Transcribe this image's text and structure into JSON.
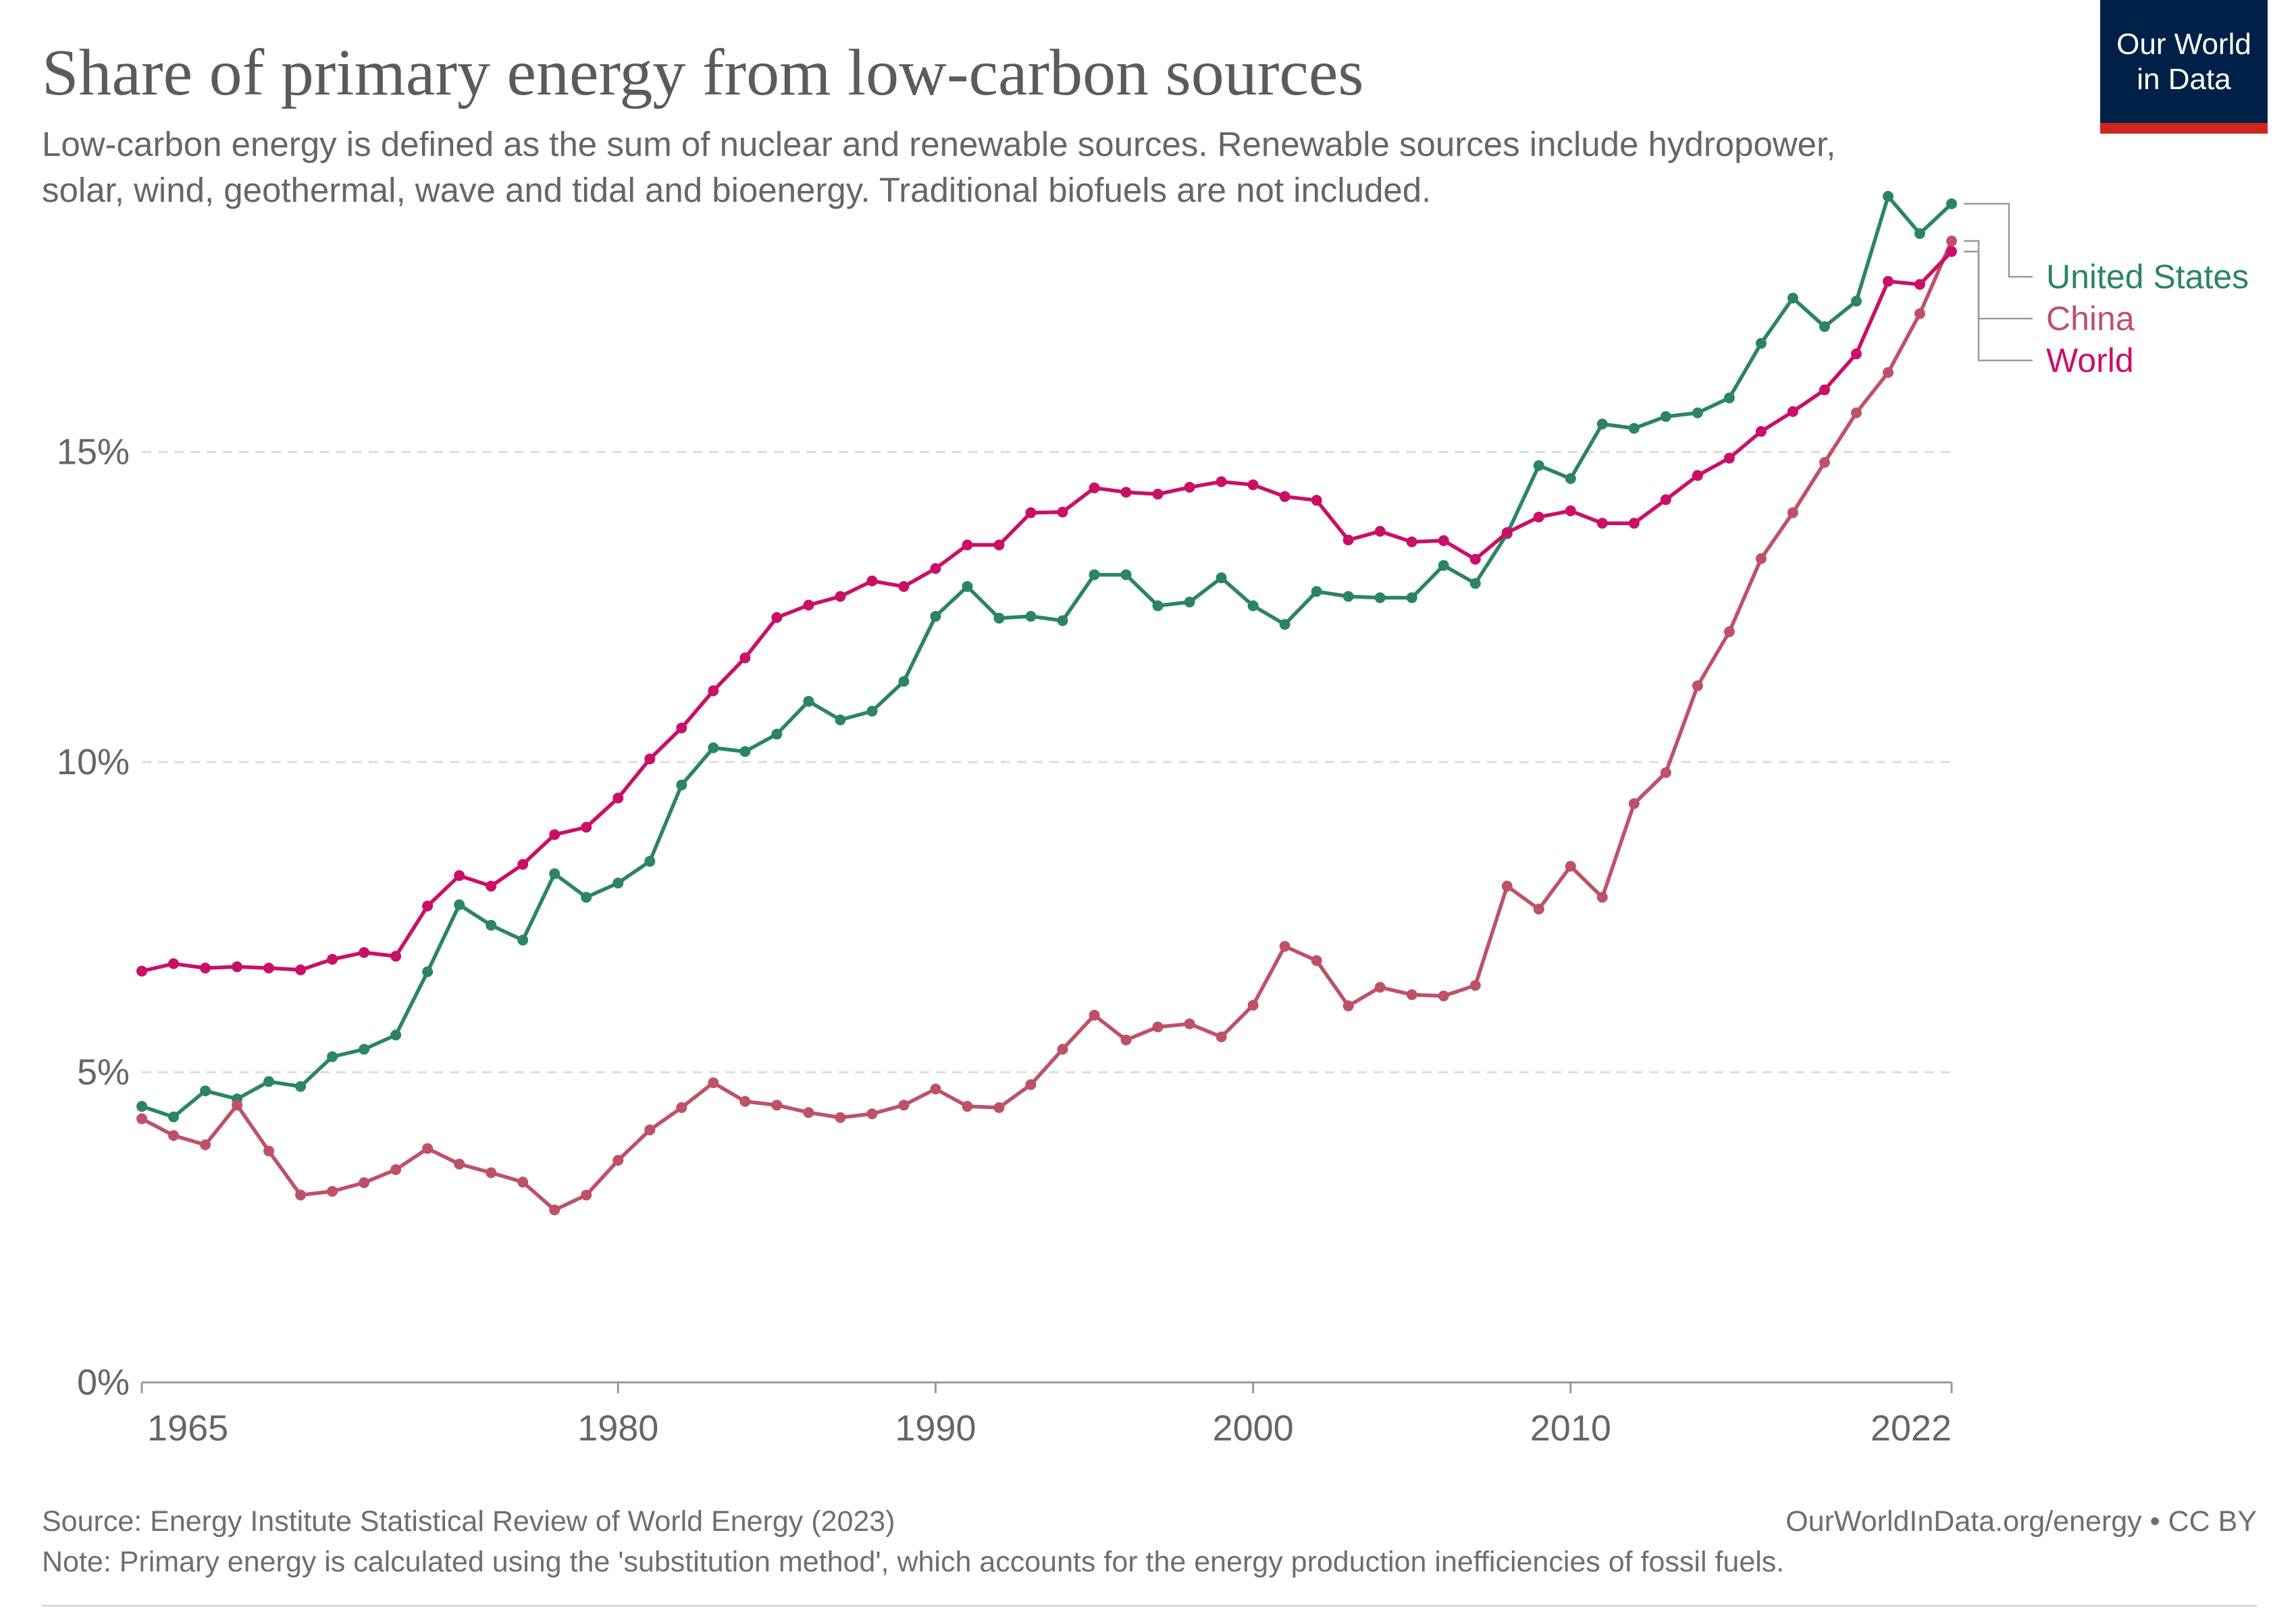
{
  "header": {
    "title": "Share of primary energy from low-carbon sources",
    "subtitle": "Low-carbon energy is defined as the sum of nuclear and renewable sources. Renewable sources include hydropower, solar, wind, geothermal, wave and tidal and bioenergy. Traditional biofuels are not included."
  },
  "logo": {
    "line1": "Our World",
    "line2": "in Data",
    "bg_color": "#002147",
    "bar_color": "#ce261e"
  },
  "footer": {
    "source": "Source: Energy Institute Statistical Review of World Energy (2023)",
    "link": "OurWorldInData.org/energy • CC BY",
    "note": "Note: Primary energy is calculated using the 'substitution method', which accounts for the energy production inefficiencies of fossil fuels."
  },
  "chart_data": {
    "type": "line",
    "xlim": [
      1965,
      2022
    ],
    "ylim": [
      0,
      20
    ],
    "x_ticks": [
      1965,
      1980,
      1990,
      2000,
      2010,
      2022
    ],
    "y_ticks": [
      0,
      5,
      10,
      15
    ],
    "y_tick_labels": [
      "0%",
      "5%",
      "10%",
      "15%"
    ],
    "grid": "horizontal dashed",
    "legend_position": "right-end",
    "x": [
      1965,
      1966,
      1967,
      1968,
      1969,
      1970,
      1971,
      1972,
      1973,
      1974,
      1975,
      1976,
      1977,
      1978,
      1979,
      1980,
      1981,
      1982,
      1983,
      1984,
      1985,
      1986,
      1987,
      1988,
      1989,
      1990,
      1991,
      1992,
      1993,
      1994,
      1995,
      1996,
      1997,
      1998,
      1999,
      2000,
      2001,
      2002,
      2003,
      2004,
      2005,
      2006,
      2007,
      2008,
      2009,
      2010,
      2011,
      2012,
      2013,
      2014,
      2015,
      2016,
      2017,
      2018,
      2019,
      2020,
      2021,
      2022
    ],
    "series": [
      {
        "name": "United States",
        "color": "#2c8465",
        "values": [
          4.45,
          4.28,
          4.7,
          4.57,
          4.85,
          4.77,
          5.25,
          5.37,
          5.6,
          6.62,
          7.7,
          7.37,
          7.13,
          8.2,
          7.82,
          8.05,
          8.4,
          9.63,
          10.23,
          10.17,
          10.45,
          10.98,
          10.68,
          10.82,
          11.3,
          12.35,
          12.83,
          12.32,
          12.35,
          12.28,
          13.02,
          13.02,
          12.52,
          12.58,
          12.97,
          12.52,
          12.22,
          12.75,
          12.67,
          12.65,
          12.65,
          13.17,
          12.88,
          13.68,
          14.78,
          14.57,
          15.45,
          15.38,
          15.57,
          15.63,
          15.87,
          16.75,
          17.48,
          17.02,
          17.43,
          19.12,
          18.52,
          19.0
        ]
      },
      {
        "name": "China",
        "color": "#be5168",
        "values": [
          4.25,
          3.98,
          3.83,
          4.47,
          3.73,
          3.02,
          3.08,
          3.22,
          3.43,
          3.77,
          3.52,
          3.38,
          3.23,
          2.78,
          3.02,
          3.58,
          4.07,
          4.43,
          4.83,
          4.53,
          4.47,
          4.35,
          4.27,
          4.33,
          4.47,
          4.73,
          4.45,
          4.43,
          4.8,
          5.37,
          5.92,
          5.52,
          5.73,
          5.78,
          5.57,
          6.08,
          7.03,
          6.8,
          6.07,
          6.37,
          6.25,
          6.23,
          6.4,
          8.0,
          7.63,
          8.32,
          7.82,
          9.33,
          9.83,
          11.23,
          12.1,
          13.28,
          14.02,
          14.83,
          15.63,
          16.28,
          17.23,
          18.4
        ]
      },
      {
        "name": "World",
        "color": "#ca0f68",
        "values": [
          6.63,
          6.75,
          6.68,
          6.7,
          6.68,
          6.65,
          6.82,
          6.93,
          6.87,
          7.68,
          8.17,
          8.0,
          8.35,
          8.83,
          8.95,
          9.42,
          10.05,
          10.55,
          11.15,
          11.68,
          12.33,
          12.53,
          12.67,
          12.92,
          12.83,
          13.12,
          13.5,
          13.5,
          14.02,
          14.03,
          14.42,
          14.35,
          14.32,
          14.43,
          14.52,
          14.47,
          14.28,
          14.22,
          13.58,
          13.72,
          13.55,
          13.57,
          13.27,
          13.7,
          13.95,
          14.05,
          13.85,
          13.85,
          14.23,
          14.62,
          14.9,
          15.33,
          15.65,
          16.0,
          16.58,
          17.75,
          17.7,
          18.23
        ]
      }
    ]
  }
}
